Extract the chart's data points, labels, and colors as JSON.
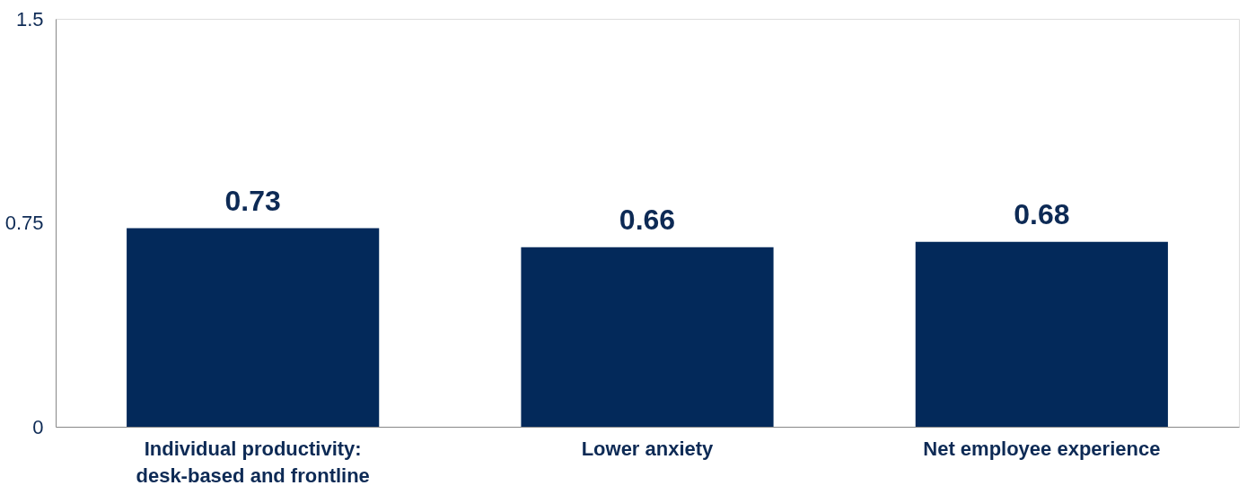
{
  "chart_data": {
    "type": "bar",
    "categories": [
      "Individual productivity: desk-based and frontline",
      "Lower anxiety",
      "Net employee experience"
    ],
    "values": [
      0.73,
      0.66,
      0.68
    ],
    "color": "#03295a",
    "ylim": [
      0,
      1.5
    ],
    "yticks": [
      0,
      0.75,
      1.5
    ],
    "grid": false,
    "data_labels": true
  }
}
